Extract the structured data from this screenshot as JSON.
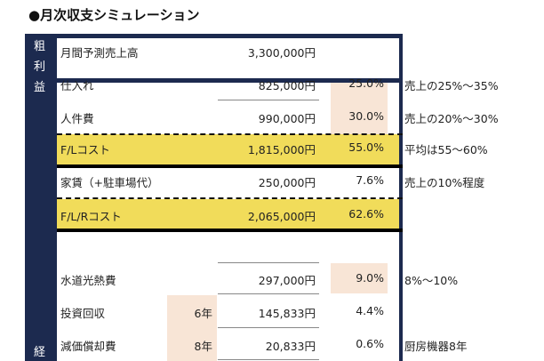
{
  "title": "●月次収支シミュレーション",
  "side": {
    "gross": [
      "粗",
      "利",
      "益"
    ],
    "expense": "経"
  },
  "rows": [
    {
      "label": "月間予測売上高",
      "value": "3,300,000円"
    },
    {
      "label": "仕入れ",
      "value": "825,000円",
      "pct": "25.0%",
      "note": "売上の25%～35%"
    },
    {
      "label": "人件費",
      "value": "990,000円",
      "pct": "30.0%",
      "note": "売上の20%～30%"
    },
    {
      "label": "F/Lコスト",
      "value": "1,815,000円",
      "pct": "55.0%",
      "note": "平均は55～60%"
    },
    {
      "label": "家賃（+駐車場代）",
      "value": "250,000円",
      "pct": "7.6%",
      "note": "売上の10%程度"
    },
    {
      "label": "F/L/Rコスト",
      "value": "2,065,000円",
      "pct": "62.6%"
    },
    {
      "label": "水道光熱費",
      "value": "297,000円",
      "pct": "9.0%",
      "note": "8%～10%"
    },
    {
      "label": "投資回収",
      "years": "6年",
      "value": "145,833円",
      "pct": "4.4%"
    },
    {
      "label": "減価償却費",
      "years": "8年",
      "value": "20,833円",
      "pct": "0.6%",
      "note": "厨房機器8年"
    }
  ],
  "colors": {
    "navy": "#1c2a4f",
    "yellow": "#f1dc5a",
    "pink": "#f8e5d6"
  }
}
